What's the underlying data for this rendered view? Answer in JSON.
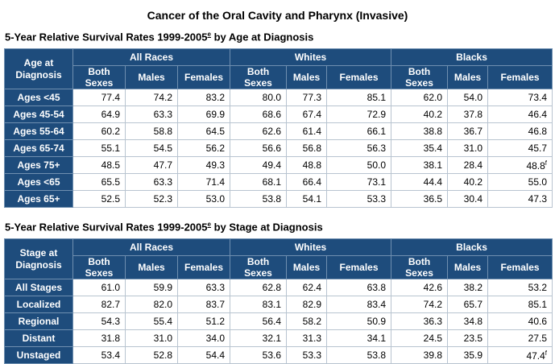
{
  "title": "Cancer of the Oral Cavity and Pharynx (Invasive)",
  "tables": [
    {
      "caption": {
        "text": "5-Year Relative Survival Rates 1999-2005",
        "sup": "e",
        "rest": " by Age at Diagnosis"
      },
      "corner": "Age at Diagnosis",
      "groups": [
        "All Races",
        "Whites",
        "Blacks"
      ],
      "subheaders": [
        "Both Sexes",
        "Males",
        "Females"
      ],
      "rows": [
        {
          "label": "Ages <45",
          "cells": [
            "77.4",
            "74.2",
            "83.2",
            "80.0",
            "77.3",
            "85.1",
            "62.0",
            "54.0",
            "73.4"
          ]
        },
        {
          "label": "Ages 45-54",
          "cells": [
            "64.9",
            "63.3",
            "69.9",
            "68.6",
            "67.4",
            "72.9",
            "40.2",
            "37.8",
            "46.4"
          ]
        },
        {
          "label": "Ages 55-64",
          "cells": [
            "60.2",
            "58.8",
            "64.5",
            "62.6",
            "61.4",
            "66.1",
            "38.8",
            "36.7",
            "46.8"
          ]
        },
        {
          "label": "Ages 65-74",
          "cells": [
            "55.1",
            "54.5",
            "56.2",
            "56.6",
            "56.8",
            "56.3",
            "35.4",
            "31.0",
            "45.7"
          ]
        },
        {
          "label": "Ages 75+",
          "cells": [
            "48.5",
            "47.7",
            "49.3",
            "49.4",
            "48.8",
            "50.0",
            "38.1",
            "28.4",
            {
              "value": "48.8",
              "sup": "f"
            }
          ]
        },
        {
          "label": "Ages <65",
          "cells": [
            "65.5",
            "63.3",
            "71.4",
            "68.1",
            "66.4",
            "73.1",
            "44.4",
            "40.2",
            "55.0"
          ]
        },
        {
          "label": "Ages 65+",
          "cells": [
            "52.5",
            "52.3",
            "53.0",
            "53.8",
            "54.1",
            "53.3",
            "36.5",
            "30.4",
            "47.3"
          ]
        }
      ]
    },
    {
      "caption": {
        "text": "5-Year Relative Survival Rates 1999-2005",
        "sup": "e",
        "rest": " by Stage at Diagnosis"
      },
      "corner": "Stage at Diagnosis",
      "groups": [
        "All Races",
        "Whites",
        "Blacks"
      ],
      "subheaders": [
        "Both Sexes",
        "Males",
        "Females"
      ],
      "rows": [
        {
          "label": "All Stages",
          "cells": [
            "61.0",
            "59.9",
            "63.3",
            "62.8",
            "62.4",
            "63.8",
            "42.6",
            "38.2",
            "53.2"
          ]
        },
        {
          "label": "Localized",
          "cells": [
            "82.7",
            "82.0",
            "83.7",
            "83.1",
            "82.9",
            "83.4",
            "74.2",
            "65.7",
            "85.1"
          ]
        },
        {
          "label": "Regional",
          "cells": [
            "54.3",
            "55.4",
            "51.2",
            "56.4",
            "58.2",
            "50.9",
            "36.3",
            "34.8",
            "40.6"
          ]
        },
        {
          "label": "Distant",
          "cells": [
            "31.8",
            "31.0",
            "34.0",
            "32.1",
            "31.3",
            "34.1",
            "24.5",
            "23.5",
            "27.5"
          ]
        },
        {
          "label": "Unstaged",
          "cells": [
            "53.4",
            "52.8",
            "54.4",
            "53.6",
            "53.3",
            "53.8",
            "39.8",
            "35.9",
            {
              "value": "47.4",
              "sup": "f"
            }
          ]
        }
      ]
    }
  ]
}
